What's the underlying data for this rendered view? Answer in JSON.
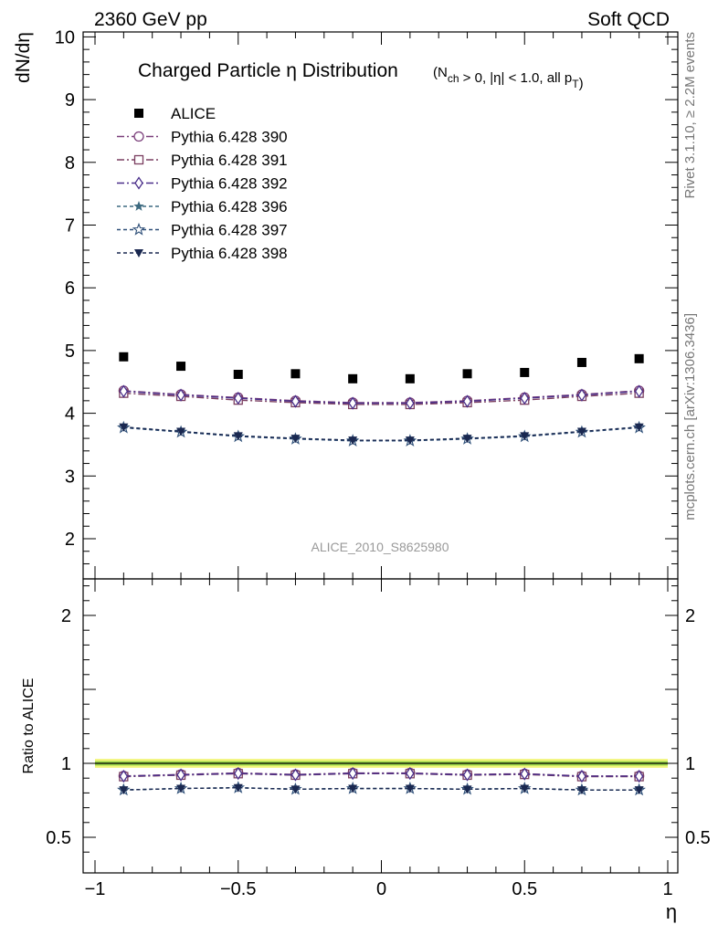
{
  "header": {
    "left": "2360 GeV pp",
    "right": "Soft QCD"
  },
  "side_labels": {
    "top": "Rivet 3.1.10, ≥ 2.2M events",
    "bottom": "mcplots.cern.ch [arXiv:1306.3436]"
  },
  "chart_data": [
    {
      "type": "scatter",
      "title_main": "Charged Particle η Distribution",
      "title_sub": "(N_ch > 0, |η| < 1.0, all p_T)",
      "ylabel": "dN/dη",
      "xlabel": "",
      "xlim": [
        -1.0,
        1.0
      ],
      "ylim": [
        1.5,
        10.0
      ],
      "yticks": [
        2,
        3,
        4,
        5,
        6,
        7,
        8,
        9,
        10
      ],
      "watermark": "ALICE_2010_S8625980",
      "legend_position": "top-left",
      "x": [
        -0.9,
        -0.7,
        -0.5,
        -0.3,
        -0.1,
        0.1,
        0.3,
        0.5,
        0.7,
        0.9
      ],
      "series": [
        {
          "name": "ALICE",
          "marker": "filled-square",
          "color": "#000000",
          "line": "none",
          "values": [
            4.9,
            4.75,
            4.62,
            4.63,
            4.55,
            4.55,
            4.63,
            4.65,
            4.81,
            4.87
          ]
        },
        {
          "name": "Pythia 6.428 390",
          "marker": "open-circle",
          "color": "#7a3e7a",
          "line": "dashdot",
          "values": [
            4.36,
            4.3,
            4.25,
            4.2,
            4.17,
            4.17,
            4.2,
            4.25,
            4.3,
            4.36
          ]
        },
        {
          "name": "Pythia 6.428 391",
          "marker": "open-square",
          "color": "#7a3e60",
          "line": "dashdot",
          "values": [
            4.32,
            4.27,
            4.21,
            4.17,
            4.14,
            4.14,
            4.17,
            4.21,
            4.27,
            4.32
          ]
        },
        {
          "name": "Pythia 6.428 392",
          "marker": "open-diamond",
          "color": "#4a2f8a",
          "line": "dashdot",
          "values": [
            4.35,
            4.29,
            4.24,
            4.19,
            4.16,
            4.16,
            4.19,
            4.24,
            4.29,
            4.35
          ]
        },
        {
          "name": "Pythia 6.428 396",
          "marker": "filled-star",
          "color": "#3d6a80",
          "line": "dashed",
          "values": [
            3.78,
            3.71,
            3.64,
            3.6,
            3.57,
            3.57,
            3.6,
            3.64,
            3.71,
            3.78
          ]
        },
        {
          "name": "Pythia 6.428 397",
          "marker": "open-star",
          "color": "#2e4f78",
          "line": "dashed",
          "values": [
            3.77,
            3.7,
            3.63,
            3.59,
            3.56,
            3.56,
            3.59,
            3.63,
            3.7,
            3.77
          ]
        },
        {
          "name": "Pythia 6.428 398",
          "marker": "filled-triangle-down",
          "color": "#1a2850",
          "line": "dashed",
          "values": [
            3.78,
            3.71,
            3.64,
            3.6,
            3.57,
            3.57,
            3.6,
            3.64,
            3.71,
            3.78
          ]
        }
      ]
    },
    {
      "type": "scatter",
      "ylabel": "Ratio to ALICE",
      "xlabel": "η",
      "xlim": [
        -1.0,
        1.0
      ],
      "ylim": [
        0.35,
        2.3
      ],
      "yticks": [
        0.5,
        1,
        2
      ],
      "ytick_labels": [
        "0.5",
        "1",
        "2"
      ],
      "xticks": [
        -1,
        -0.5,
        0,
        0.5,
        1
      ],
      "xtick_labels": [
        "−1",
        "−0.5",
        "0",
        "0.5",
        "1"
      ],
      "reference_band": {
        "center": 1.0,
        "inner": 0.015,
        "outer": 0.03,
        "inner_color": "#9bd64a",
        "outer_color": "#f2f57a"
      },
      "x": [
        -0.9,
        -0.7,
        -0.5,
        -0.3,
        -0.1,
        0.1,
        0.3,
        0.5,
        0.7,
        0.9
      ],
      "series": [
        {
          "name": "Pythia 6.428 390",
          "values": [
            0.915,
            0.925,
            0.935,
            0.925,
            0.935,
            0.935,
            0.925,
            0.93,
            0.915,
            0.915
          ]
        },
        {
          "name": "Pythia 6.428 391",
          "values": [
            0.91,
            0.92,
            0.93,
            0.92,
            0.93,
            0.93,
            0.92,
            0.925,
            0.91,
            0.91
          ]
        },
        {
          "name": "Pythia 6.428 392",
          "values": [
            0.913,
            0.922,
            0.932,
            0.922,
            0.932,
            0.932,
            0.922,
            0.928,
            0.913,
            0.913
          ]
        },
        {
          "name": "Pythia 6.428 396",
          "values": [
            0.82,
            0.83,
            0.835,
            0.825,
            0.83,
            0.83,
            0.825,
            0.83,
            0.82,
            0.82
          ]
        },
        {
          "name": "Pythia 6.428 397",
          "values": [
            0.82,
            0.83,
            0.835,
            0.825,
            0.83,
            0.83,
            0.825,
            0.83,
            0.82,
            0.82
          ]
        },
        {
          "name": "Pythia 6.428 398",
          "values": [
            0.82,
            0.83,
            0.835,
            0.825,
            0.83,
            0.83,
            0.825,
            0.83,
            0.82,
            0.82
          ]
        }
      ]
    }
  ]
}
